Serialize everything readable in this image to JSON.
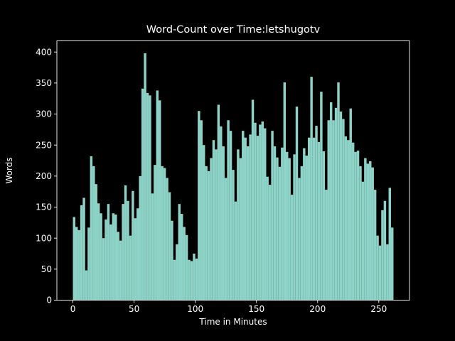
{
  "figure": {
    "background_color": "#000000",
    "text_color": "#ffffff",
    "style": "dark_background"
  },
  "chart_data": {
    "type": "bar",
    "title": "Word-Count over Time:letshugotv",
    "xlabel": "Time in Minutes",
    "ylabel": "Words",
    "bar_color": "#8dd3c7",
    "grid": false,
    "legend": null,
    "bin_width_minutes": 2,
    "xlim": [
      -13.1,
      275.1
    ],
    "ylim": [
      0,
      418
    ],
    "xticks": [
      0,
      50,
      100,
      150,
      200,
      250
    ],
    "yticks": [
      0,
      50,
      100,
      150,
      200,
      250,
      300,
      350,
      400
    ],
    "x_bin_starts": [
      0,
      2,
      4,
      6,
      8,
      10,
      12,
      14,
      16,
      18,
      20,
      22,
      24,
      26,
      28,
      30,
      32,
      34,
      36,
      38,
      40,
      42,
      44,
      46,
      48,
      50,
      52,
      54,
      56,
      58,
      60,
      62,
      64,
      66,
      68,
      70,
      72,
      74,
      76,
      78,
      80,
      82,
      84,
      86,
      88,
      90,
      92,
      94,
      96,
      98,
      100,
      102,
      104,
      106,
      108,
      110,
      112,
      114,
      116,
      118,
      120,
      122,
      124,
      126,
      128,
      130,
      132,
      134,
      136,
      138,
      140,
      142,
      144,
      146,
      148,
      150,
      152,
      154,
      156,
      158,
      160,
      162,
      164,
      166,
      168,
      170,
      172,
      174,
      176,
      178,
      180,
      182,
      184,
      186,
      188,
      190,
      192,
      194,
      196,
      198,
      200,
      202,
      204,
      206,
      208,
      210,
      212,
      214,
      216,
      218,
      220,
      222,
      224,
      226,
      228,
      230,
      232,
      234,
      236,
      238,
      240,
      242,
      244,
      246,
      248,
      250,
      252,
      254,
      256,
      258,
      260
    ],
    "values": [
      134,
      118,
      113,
      153,
      165,
      48,
      117,
      232,
      216,
      187,
      156,
      140,
      100,
      130,
      155,
      122,
      140,
      138,
      110,
      96,
      155,
      185,
      160,
      104,
      176,
      132,
      148,
      200,
      341,
      398,
      334,
      330,
      172,
      218,
      338,
      322,
      216,
      213,
      197,
      174,
      128,
      65,
      90,
      155,
      139,
      118,
      105,
      65,
      63,
      75,
      67,
      305,
      290,
      250,
      216,
      208,
      229,
      258,
      243,
      315,
      280,
      248,
      197,
      290,
      273,
      210,
      159,
      243,
      229,
      273,
      262,
      248,
      267,
      323,
      286,
      265,
      283,
      288,
      277,
      199,
      186,
      273,
      248,
      230,
      215,
      246,
      351,
      239,
      229,
      170,
      235,
      312,
      197,
      216,
      245,
      233,
      262,
      360,
      262,
      281,
      255,
      336,
      240,
      178,
      290,
      319,
      290,
      310,
      351,
      304,
      292,
      264,
      258,
      309,
      254,
      239,
      241,
      216,
      191,
      229,
      220,
      224,
      214,
      178,
      104,
      88,
      145,
      160,
      90,
      181,
      117
    ]
  }
}
